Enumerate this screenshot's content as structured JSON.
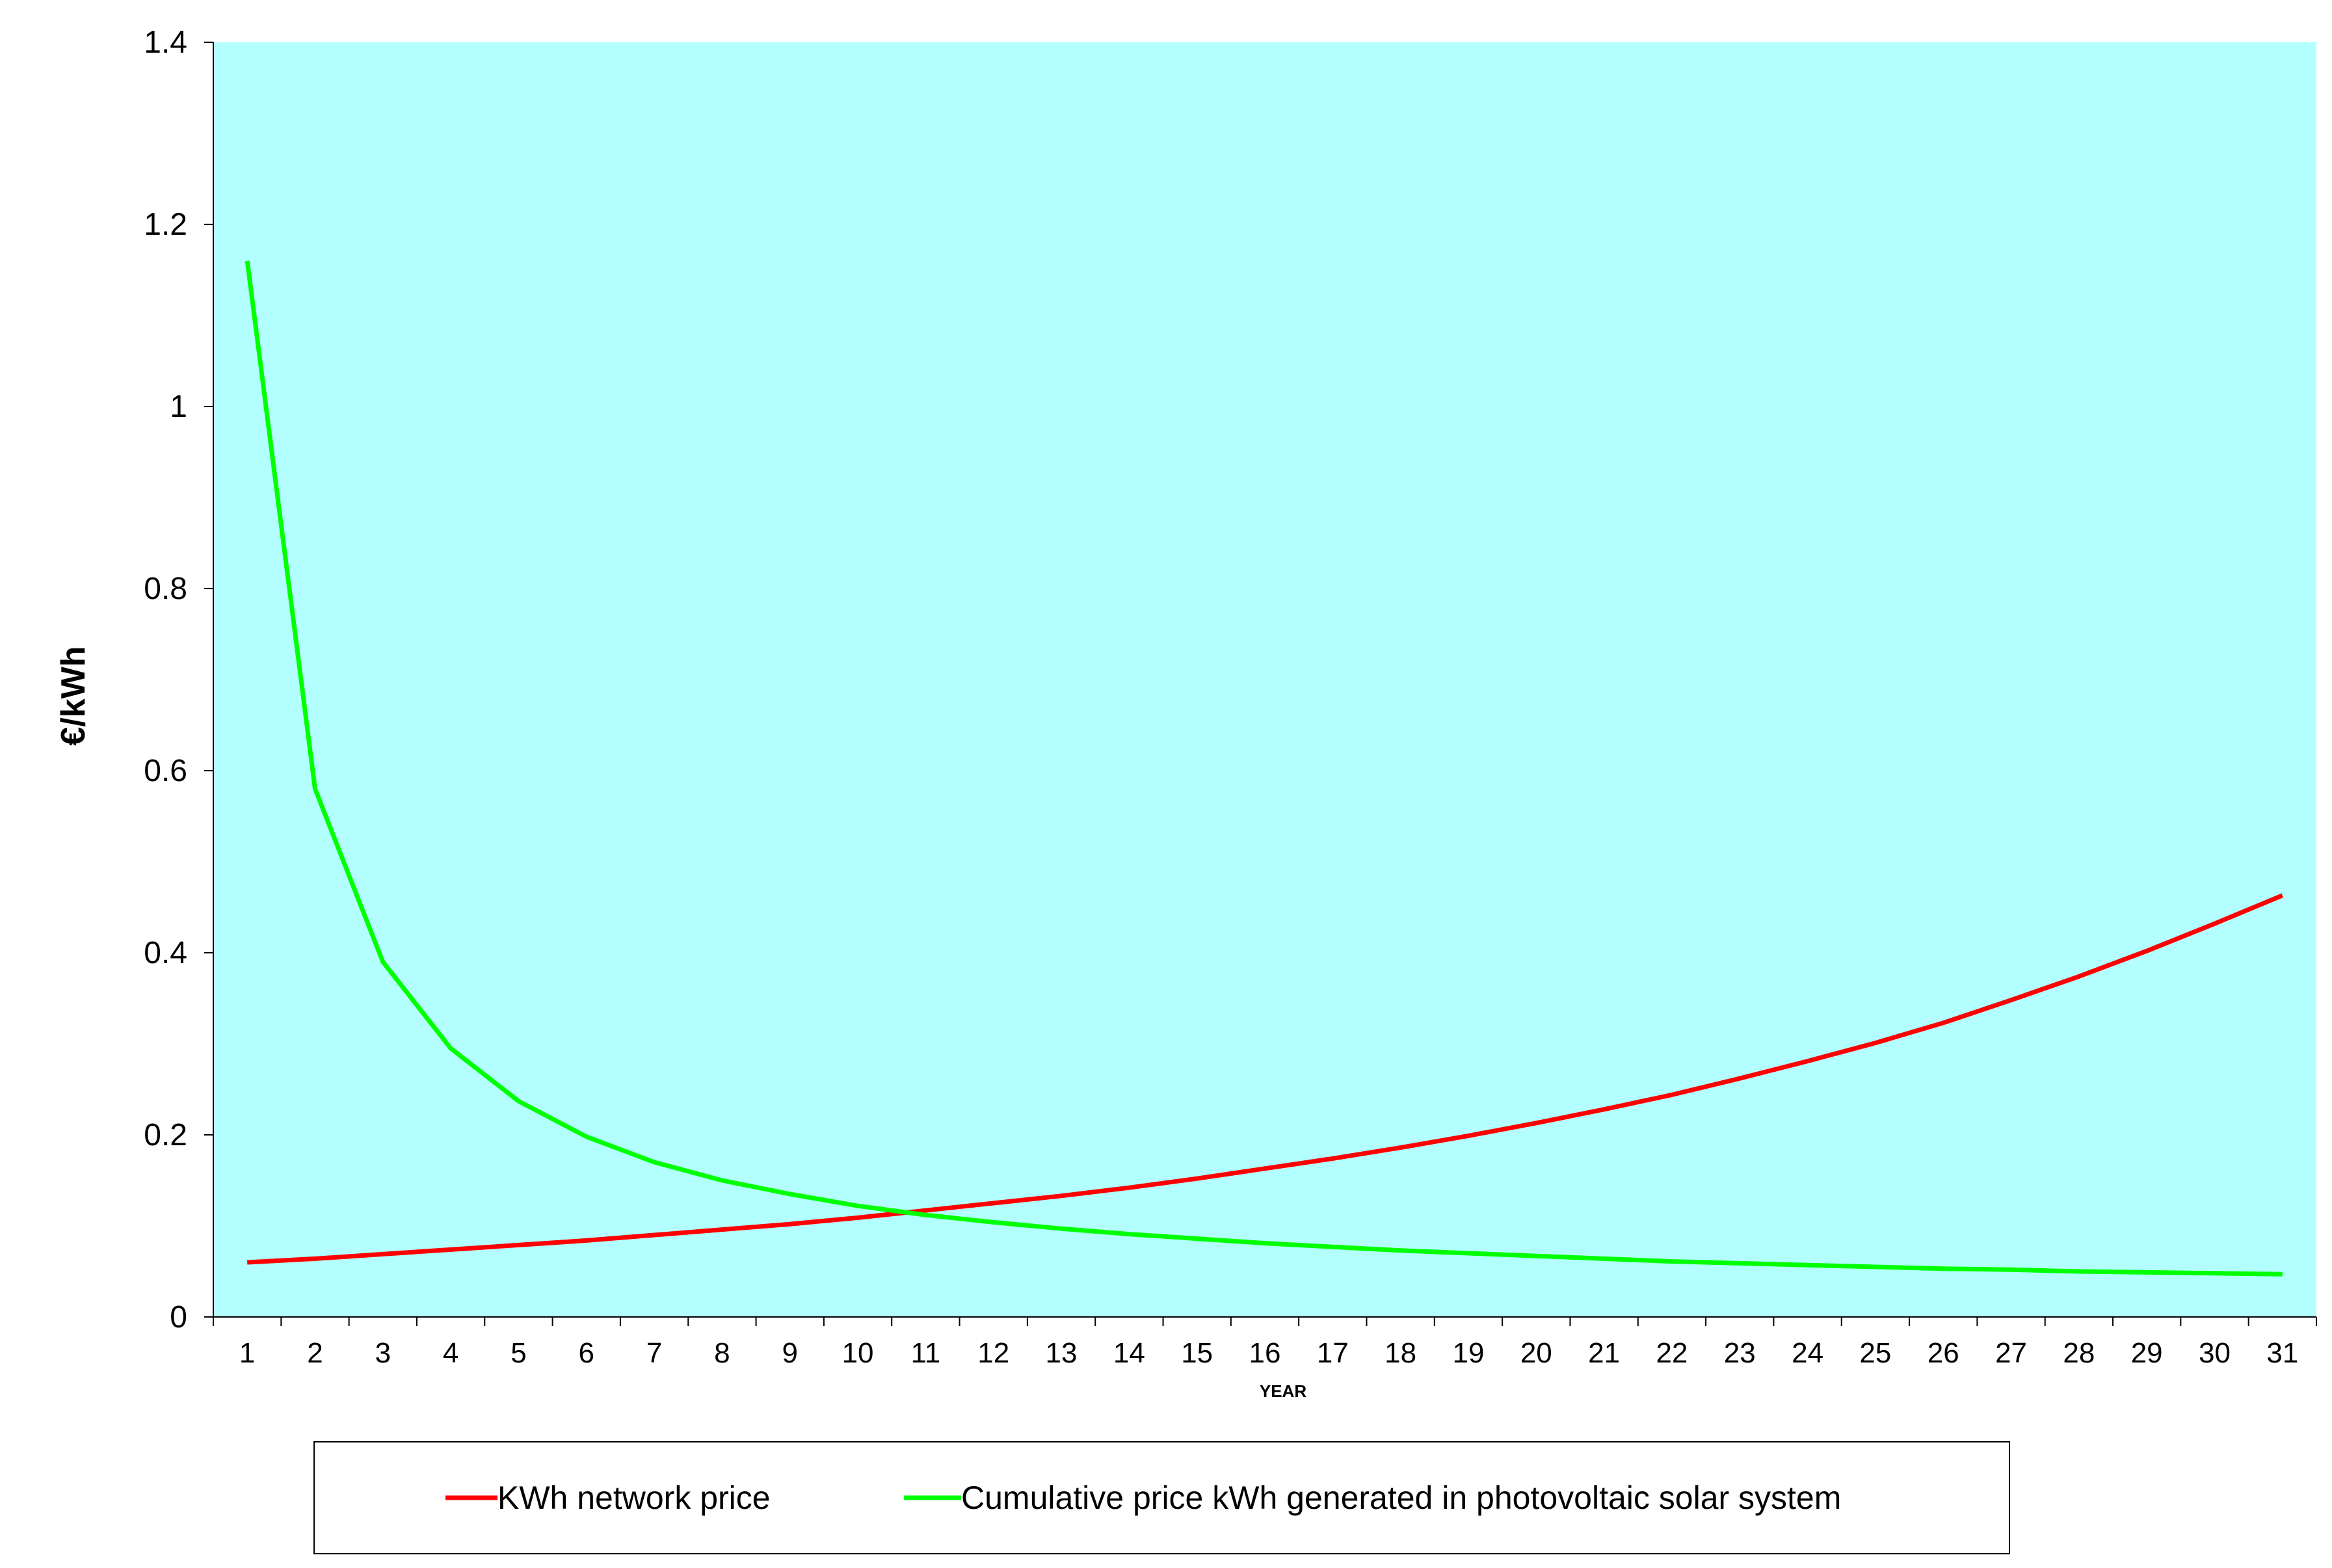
{
  "chart_data": {
    "type": "line",
    "xlabel": "YEAR",
    "ylabel": "€/kWh",
    "x": [
      1,
      2,
      3,
      4,
      5,
      6,
      7,
      8,
      9,
      10,
      11,
      12,
      13,
      14,
      15,
      16,
      17,
      18,
      19,
      20,
      21,
      22,
      23,
      24,
      25,
      26,
      27,
      28,
      29,
      30,
      31
    ],
    "ylim": [
      0,
      1.4
    ],
    "yticks": [
      "0",
      "0.2",
      "0.4",
      "0.6",
      "0.8",
      "1",
      "1.2",
      "1.4"
    ],
    "plot_background": "#B3FFFF",
    "grid": false,
    "legend_position": "bottom",
    "series": [
      {
        "name": "KWh network price",
        "color": "#FF0000",
        "values": [
          0.06,
          0.064,
          0.069,
          0.074,
          0.079,
          0.084,
          0.09,
          0.096,
          0.102,
          0.109,
          0.117,
          0.125,
          0.133,
          0.142,
          0.152,
          0.163,
          0.174,
          0.186,
          0.199,
          0.213,
          0.228,
          0.244,
          0.262,
          0.281,
          0.301,
          0.323,
          0.348,
          0.374,
          0.402,
          0.432,
          0.463
        ]
      },
      {
        "name": "Cumulative price kWh generated in photovoltaic solar system",
        "color": "#00FF00",
        "values": [
          1.16,
          0.58,
          0.39,
          0.295,
          0.237,
          0.198,
          0.17,
          0.15,
          0.135,
          0.122,
          0.112,
          0.104,
          0.097,
          0.091,
          0.086,
          0.081,
          0.077,
          0.073,
          0.07,
          0.067,
          0.064,
          0.061,
          0.059,
          0.057,
          0.055,
          0.053,
          0.052,
          0.05,
          0.049,
          0.048,
          0.047
        ]
      }
    ]
  }
}
